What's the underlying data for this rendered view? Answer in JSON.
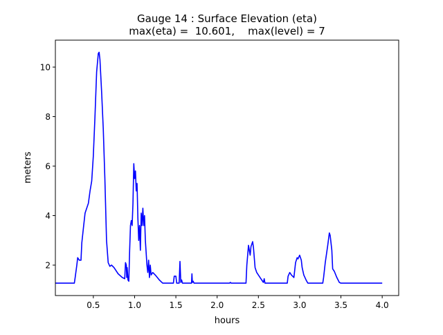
{
  "chart_data": {
    "type": "line",
    "title": "Gauge 14 : Surface Elevation (eta)",
    "subtitle": "max(eta) =  10.601,    max(level) = 7",
    "xlabel": "hours",
    "ylabel": "meters",
    "xlim": [
      0.04,
      4.2
    ],
    "ylim": [
      0.77,
      11.09
    ],
    "xticks": [
      0.5,
      1.0,
      1.5,
      2.0,
      2.5,
      3.0,
      3.5,
      4.0
    ],
    "xtick_labels": [
      "0.5",
      "1.0",
      "1.5",
      "2.0",
      "2.5",
      "3.0",
      "3.5",
      "4.0"
    ],
    "yticks": [
      2,
      4,
      6,
      8,
      10
    ],
    "ytick_labels": [
      "2",
      "4",
      "6",
      "8",
      "10"
    ],
    "grid": false,
    "series": [
      {
        "name": "eta",
        "color": "#0000ff",
        "x": [
          0.04,
          0.27,
          0.28,
          0.3,
          0.31,
          0.33,
          0.35,
          0.36,
          0.38,
          0.4,
          0.42,
          0.44,
          0.46,
          0.48,
          0.5,
          0.52,
          0.54,
          0.56,
          0.57,
          0.58,
          0.6,
          0.62,
          0.64,
          0.66,
          0.68,
          0.7,
          0.72,
          0.75,
          0.8,
          0.85,
          0.88,
          0.89,
          0.9,
          0.905,
          0.91,
          0.92,
          0.93,
          0.94,
          0.95,
          0.96,
          0.97,
          0.98,
          0.99,
          1.0,
          1.01,
          1.02,
          1.03,
          1.04,
          1.05,
          1.06,
          1.07,
          1.08,
          1.09,
          1.1,
          1.11,
          1.12,
          1.13,
          1.15,
          1.16,
          1.17,
          1.18,
          1.19,
          1.2,
          1.22,
          1.25,
          1.3,
          1.34,
          1.47,
          1.48,
          1.5,
          1.51,
          1.54,
          1.55,
          1.56,
          1.57,
          1.58,
          1.69,
          1.695,
          1.7,
          1.71,
          1.72,
          2.15,
          2.16,
          2.17,
          2.35,
          2.36,
          2.38,
          2.39,
          2.4,
          2.41,
          2.43,
          2.44,
          2.46,
          2.48,
          2.52,
          2.56,
          2.57,
          2.58,
          2.85,
          2.86,
          2.88,
          2.9,
          2.93,
          2.95,
          2.97,
          2.98,
          3.0,
          3.02,
          3.03,
          3.05,
          3.08,
          3.1,
          3.28,
          3.29,
          3.31,
          3.34,
          3.36,
          3.37,
          3.39,
          3.4,
          3.42,
          3.45,
          3.48,
          3.5,
          4.0
        ],
        "y": [
          1.27,
          1.27,
          1.5,
          2.0,
          2.3,
          2.2,
          2.2,
          2.9,
          3.5,
          4.1,
          4.3,
          4.5,
          5.0,
          5.4,
          6.4,
          8.0,
          9.8,
          10.55,
          10.6,
          10.3,
          9.0,
          7.5,
          5.5,
          3.0,
          2.1,
          1.95,
          2.0,
          1.9,
          1.65,
          1.5,
          1.45,
          2.1,
          2.0,
          1.5,
          1.9,
          1.4,
          1.35,
          2.6,
          3.6,
          3.8,
          3.6,
          4.5,
          6.1,
          5.5,
          5.8,
          5.0,
          5.3,
          3.9,
          3.0,
          3.6,
          2.6,
          4.1,
          3.6,
          4.3,
          3.6,
          4.0,
          3.0,
          2.0,
          1.7,
          2.2,
          1.5,
          2.0,
          1.6,
          1.7,
          1.6,
          1.4,
          1.27,
          1.27,
          1.55,
          1.55,
          1.27,
          1.27,
          2.15,
          1.3,
          1.4,
          1.27,
          1.27,
          1.65,
          1.3,
          1.35,
          1.27,
          1.27,
          1.3,
          1.27,
          1.27,
          2.0,
          2.8,
          2.6,
          2.4,
          2.75,
          2.95,
          2.7,
          1.9,
          1.7,
          1.5,
          1.3,
          1.45,
          1.27,
          1.27,
          1.55,
          1.7,
          1.6,
          1.5,
          2.1,
          2.3,
          2.25,
          2.4,
          2.2,
          1.9,
          1.6,
          1.38,
          1.27,
          1.27,
          1.5,
          2.1,
          2.8,
          3.3,
          3.2,
          2.6,
          1.85,
          1.75,
          1.5,
          1.3,
          1.27,
          1.27
        ]
      }
    ]
  }
}
